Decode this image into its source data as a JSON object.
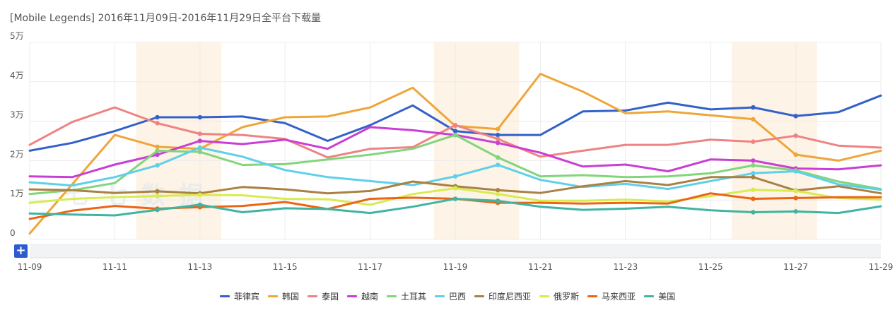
{
  "header": {
    "title": "[Mobile Legends]  2016年11月09日-2016年11月29日全平台下载量"
  },
  "controls": {
    "zoom_label": "+"
  },
  "watermark": {
    "text": "七 七 数 据"
  },
  "chart_data": {
    "type": "line",
    "x": [
      "11-09",
      "11-10",
      "11-11",
      "11-12",
      "11-13",
      "11-14",
      "11-15",
      "11-16",
      "11-17",
      "11-18",
      "11-19",
      "11-20",
      "11-21",
      "11-22",
      "11-23",
      "11-24",
      "11-25",
      "11-26",
      "11-27",
      "11-28",
      "11-29"
    ],
    "x_tick_labels": [
      "11-09",
      "11-11",
      "11-13",
      "11-15",
      "11-17",
      "11-19",
      "11-21",
      "11-23",
      "11-25",
      "11-27",
      "11-29"
    ],
    "y_tick_labels": [
      "0",
      "1万",
      "2万",
      "3万",
      "4万",
      "5万"
    ],
    "ylim": [
      0,
      50000
    ],
    "grid": true,
    "legend_position": "bottom",
    "highlight_bands": [
      [
        "11-12",
        "11-13"
      ],
      [
        "11-19",
        "11-20"
      ],
      [
        "11-26",
        "11-27"
      ]
    ],
    "highlight_color": "#fdf3e6",
    "series": [
      {
        "name": "菲律宾",
        "color": "#3461c9",
        "values": [
          22500,
          24500,
          27500,
          31000,
          31000,
          31200,
          29500,
          25000,
          29000,
          34000,
          27500,
          26500,
          26500,
          32500,
          32700,
          34700,
          33000,
          33500,
          31300,
          32300,
          36500
        ]
      },
      {
        "name": "韩国",
        "color": "#eea63a",
        "values": [
          1500,
          14000,
          26500,
          23500,
          23000,
          28500,
          31000,
          31200,
          33500,
          38500,
          28800,
          28000,
          42000,
          37500,
          32000,
          32500,
          31500,
          30500,
          21500,
          20000,
          22500
        ]
      },
      {
        "name": "泰国",
        "color": "#ee8384",
        "values": [
          24000,
          29800,
          33500,
          29500,
          26800,
          26500,
          25500,
          20800,
          23000,
          23400,
          29000,
          25500,
          21000,
          22500,
          24000,
          24000,
          25300,
          24800,
          26300,
          23800,
          23300
        ]
      },
      {
        "name": "越南",
        "color": "#c93ed4",
        "values": [
          16000,
          15800,
          19000,
          21500,
          25000,
          24200,
          25300,
          23000,
          28500,
          27700,
          26500,
          24500,
          22000,
          18500,
          19000,
          17300,
          20300,
          20000,
          18000,
          17800,
          18800
        ]
      },
      {
        "name": "土耳其",
        "color": "#81d57b",
        "values": [
          11500,
          12500,
          14300,
          22500,
          22200,
          18900,
          19100,
          20300,
          21500,
          23000,
          26500,
          20800,
          16000,
          16300,
          15800,
          16000,
          16800,
          18800,
          17500,
          14700,
          12800
        ]
      },
      {
        "name": "巴西",
        "color": "#5fcfea",
        "values": [
          14500,
          13700,
          15800,
          18800,
          23300,
          21000,
          17600,
          15800,
          14800,
          13800,
          16000,
          18900,
          15100,
          13300,
          14100,
          12800,
          14800,
          16800,
          17300,
          14000,
          12600
        ]
      },
      {
        "name": "印度尼西亚",
        "color": "#a98143",
        "values": [
          12700,
          12500,
          11800,
          12200,
          11700,
          13300,
          12700,
          11700,
          12300,
          14700,
          13500,
          12500,
          11800,
          13500,
          14800,
          13800,
          15800,
          15800,
          12400,
          13500,
          11700
        ]
      },
      {
        "name": "俄罗斯",
        "color": "#d8eb4f",
        "values": [
          9300,
          10300,
          10700,
          11000,
          11300,
          11200,
          10300,
          10200,
          8800,
          11500,
          13000,
          11500,
          9800,
          9800,
          10100,
          9600,
          11000,
          12600,
          12300,
          10500,
          10100
        ]
      },
      {
        "name": "马来西亚",
        "color": "#ea6615",
        "values": [
          5200,
          7300,
          8500,
          7800,
          8200,
          8500,
          9500,
          7700,
          10300,
          10600,
          10300,
          9300,
          9300,
          9100,
          9300,
          9100,
          11700,
          10300,
          10500,
          10700,
          10700
        ]
      },
      {
        "name": "美国",
        "color": "#3fb4a1",
        "values": [
          6600,
          6300,
          6100,
          7500,
          8800,
          6900,
          7900,
          7700,
          6700,
          8300,
          10300,
          9800,
          8300,
          7500,
          7800,
          8300,
          7400,
          6900,
          7100,
          6700,
          8400
        ]
      }
    ]
  }
}
